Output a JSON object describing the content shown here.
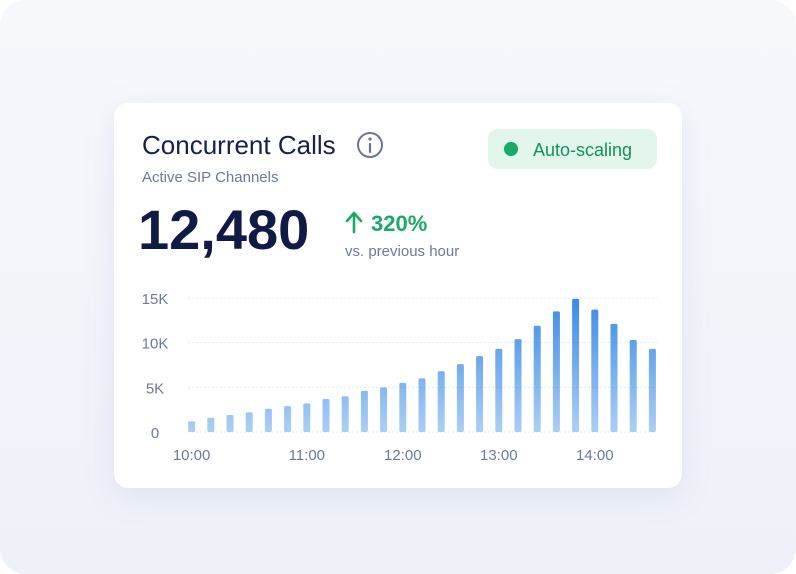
{
  "header": {
    "title": "Concurrent Calls",
    "subtitle": "Active SIP Channels",
    "badge": "Auto-scaling"
  },
  "metric": {
    "value": "12,480",
    "change": "320%",
    "comparison": "vs. previous hour"
  },
  "chart_data": {
    "type": "bar",
    "color": "#3a8be6",
    "categories": [
      "10:00",
      null,
      null,
      null,
      null,
      null,
      "11:00",
      null,
      null,
      null,
      null,
      "12:00",
      null,
      null,
      null,
      null,
      "13:00",
      null,
      null,
      null,
      null,
      "14:00",
      null,
      null,
      null
    ],
    "values": [
      1200,
      1600,
      1900,
      2200,
      2600,
      2900,
      3200,
      3700,
      4000,
      4600,
      5000,
      5500,
      6000,
      6800,
      7600,
      8500,
      9300,
      10400,
      11900,
      13500,
      14900,
      13700,
      12100,
      10300,
      9300
    ],
    "ylim": [
      0,
      15000
    ],
    "yticks": [
      0,
      {
        "value": 5000,
        "label": "5K"
      },
      {
        "value": 10000,
        "label": "10K"
      },
      {
        "value": 15000,
        "label": "15K"
      }
    ],
    "grid": true
  }
}
